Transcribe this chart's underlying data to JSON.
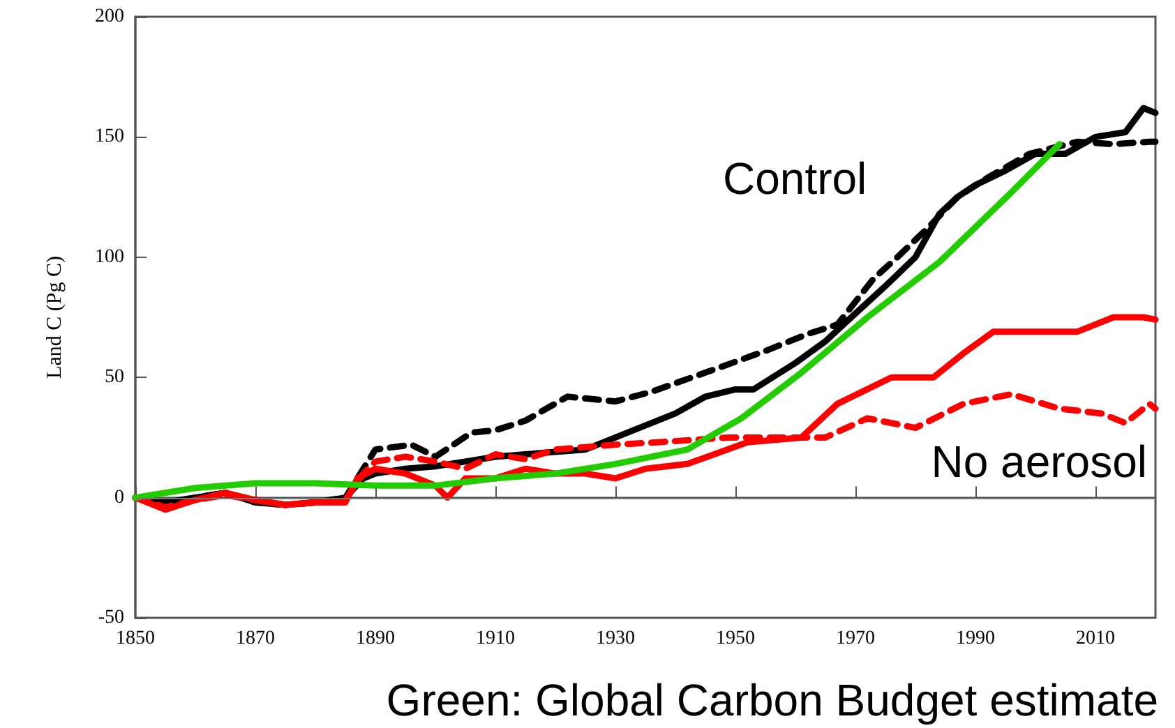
{
  "chart_data": {
    "type": "line",
    "ylabel": "Land C (Pg C)",
    "xlim": [
      1850,
      2020
    ],
    "xticks": [
      1850,
      1870,
      1890,
      1910,
      1930,
      1950,
      1970,
      1990,
      2010
    ],
    "ylim": [
      -50,
      200
    ],
    "yticks": [
      -50,
      0,
      50,
      100,
      150,
      200
    ],
    "grid": false,
    "marker": "none",
    "series": [
      {
        "color": "#000000",
        "line_style": "solid",
        "x": [
          1850,
          1855,
          1860,
          1865,
          1870,
          1875,
          1880,
          1885,
          1888,
          1890,
          1895,
          1900,
          1905,
          1910,
          1915,
          1920,
          1925,
          1930,
          1935,
          1940,
          1945,
          1950,
          1953,
          1960,
          1965,
          1968,
          1975,
          1980,
          1984,
          1987,
          1990,
          1995,
          2000,
          2005,
          2010,
          2015,
          2018,
          2020
        ],
        "values": [
          0,
          -2,
          0,
          2,
          -2,
          -3,
          -2,
          0,
          8,
          10,
          12,
          13,
          15,
          17,
          18,
          19,
          20,
          25,
          30,
          35,
          42,
          45,
          45,
          56,
          65,
          72,
          88,
          100,
          118,
          125,
          130,
          136,
          143,
          143,
          150,
          152,
          162,
          160
        ]
      },
      {
        "color": "#000000",
        "line_style": "dashed",
        "x": [
          1850,
          1855,
          1860,
          1865,
          1870,
          1875,
          1880,
          1885,
          1888,
          1890,
          1896,
          1900,
          1906,
          1910,
          1915,
          1922,
          1930,
          1936,
          1945,
          1955,
          1962,
          1967,
          1973,
          1977,
          1982,
          1987,
          1992,
          1999,
          2007,
          2013,
          2019,
          2020
        ],
        "values": [
          0,
          -2,
          0,
          2,
          -2,
          -3,
          -2,
          0,
          12,
          20,
          22,
          17,
          27,
          28,
          32,
          42,
          40,
          44,
          52,
          61,
          68,
          72,
          91,
          100,
          112,
          125,
          133,
          143,
          148,
          147,
          148,
          148
        ]
      },
      {
        "color": "#ff0000",
        "line_style": "solid",
        "x": [
          1850,
          1855,
          1860,
          1865,
          1870,
          1875,
          1880,
          1885,
          1887,
          1890,
          1895,
          1900,
          1902,
          1905,
          1910,
          1915,
          1920,
          1925,
          1930,
          1935,
          1942,
          1952,
          1961,
          1967,
          1976,
          1983,
          1988,
          1993,
          2000,
          2007,
          2013,
          2018,
          2020
        ],
        "values": [
          0,
          -5,
          -1,
          2,
          -1,
          -3,
          -2,
          -2,
          8,
          12,
          10,
          5,
          0,
          8,
          8,
          12,
          10,
          10,
          8,
          12,
          14,
          23,
          25,
          39,
          50,
          50,
          60,
          69,
          69,
          69,
          75,
          75,
          74
        ]
      },
      {
        "color": "#ff0000",
        "line_style": "dashed",
        "x": [
          1850,
          1855,
          1860,
          1865,
          1870,
          1875,
          1880,
          1885,
          1888,
          1890,
          1895,
          1900,
          1905,
          1910,
          1915,
          1920,
          1925,
          1930,
          1937,
          1949,
          1965,
          1972,
          1980,
          1988,
          1996,
          2004,
          2011,
          2015,
          2019,
          2020
        ],
        "values": [
          0,
          -4,
          -1,
          1,
          -1,
          -3,
          -2,
          -1,
          10,
          15,
          17,
          15,
          12,
          18,
          16,
          20,
          21,
          22,
          23,
          25,
          25,
          33,
          29,
          39,
          43,
          37,
          35,
          31,
          39,
          37
        ]
      },
      {
        "color": "#22cc00",
        "line_style": "solid",
        "x": [
          1850,
          1860,
          1870,
          1880,
          1890,
          1900,
          1910,
          1920,
          1930,
          1942,
          1951,
          1961,
          1972,
          1984,
          1996,
          2004
        ],
        "values": [
          0,
          4,
          6,
          6,
          5,
          5,
          8,
          10,
          14,
          20,
          33,
          52,
          75,
          98,
          127,
          147
        ]
      }
    ],
    "ref_lines": [
      {
        "axis": "y",
        "value": 0,
        "color": "#777777",
        "line_style": "solid"
      }
    ],
    "annotations": [
      "Control",
      "No aerosol",
      "Green: Global Carbon Budget estimate"
    ]
  }
}
